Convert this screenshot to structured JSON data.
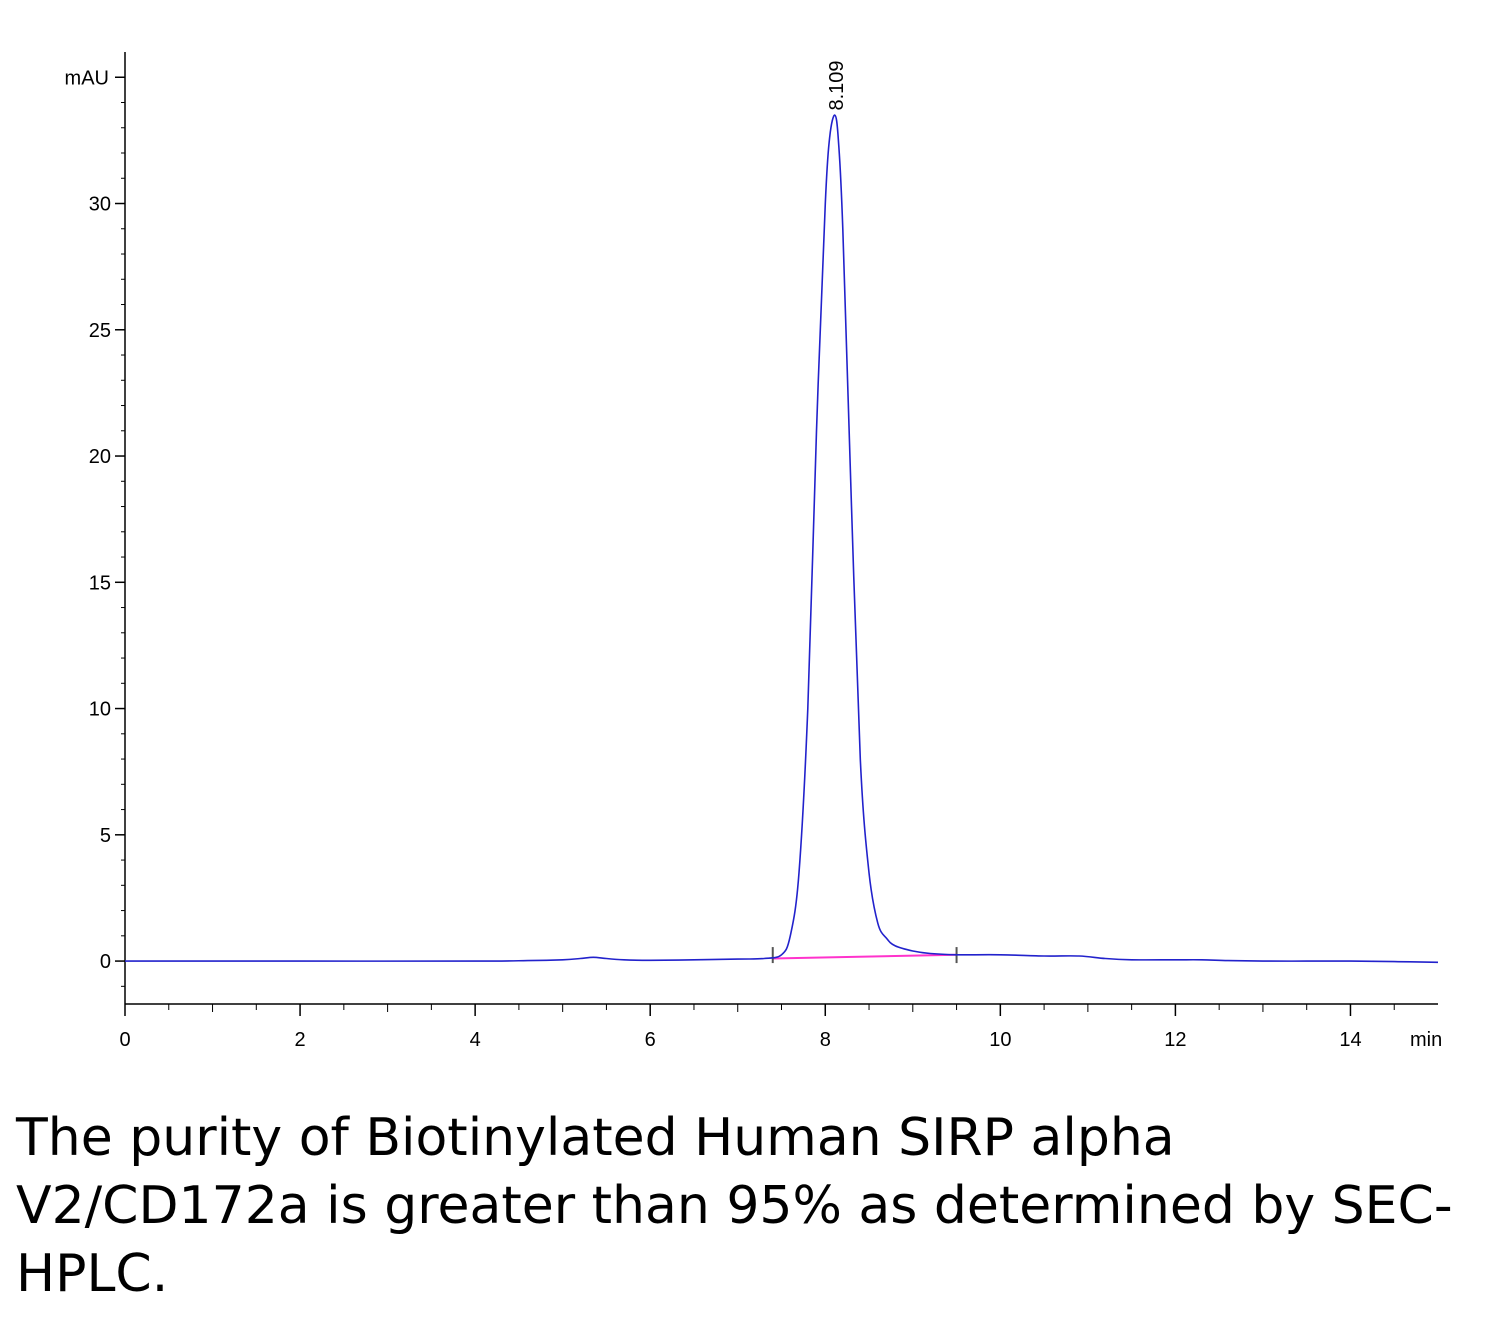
{
  "caption": "The purity of Biotinylated Human SIRP alpha V2/CD172a is greater than 95% as determined by SEC-HPLC.",
  "colors": {
    "signal": "#2222cc",
    "baseline": "#ff33cc",
    "axis": "#000000",
    "marker": "#555555"
  },
  "chart_data": {
    "type": "line",
    "ylabel": "mAU",
    "xlabel": "min",
    "xlim": [
      0,
      15
    ],
    "ylim": [
      -1.7,
      36
    ],
    "x_ticks": [
      0,
      2,
      4,
      6,
      8,
      10,
      12,
      14
    ],
    "x_tick_labels": [
      "0",
      "2",
      "4",
      "6",
      "8",
      "10",
      "12",
      "14"
    ],
    "y_ticks": [
      0,
      5,
      10,
      15,
      20,
      25,
      30
    ],
    "y_tick_labels": [
      "0",
      "5",
      "10",
      "15",
      "20",
      "25",
      "30"
    ],
    "peak_labels": [
      {
        "x": 8.109,
        "y": 34.0,
        "text": "8.109"
      }
    ],
    "integration_markers": [
      7.4,
      9.5
    ],
    "integration_baseline": {
      "x": [
        7.4,
        9.5
      ],
      "y": [
        0.1,
        0.25
      ]
    },
    "grid": false,
    "series": [
      {
        "x": [
          0,
          2,
          4,
          4.6,
          5.0,
          5.2,
          5.35,
          5.5,
          5.7,
          6.0,
          6.5,
          7.0,
          7.3,
          7.5,
          7.6,
          7.7,
          7.8,
          7.9,
          8.0,
          8.05,
          8.109,
          8.15,
          8.2,
          8.3,
          8.4,
          8.5,
          8.6,
          8.7,
          8.8,
          9.0,
          9.2,
          9.5,
          10.0,
          10.5,
          10.9,
          11.2,
          11.5,
          12.0,
          12.3,
          12.6,
          13.0,
          13.5,
          14.0,
          14.5,
          15.0
        ],
        "y": [
          0,
          0,
          0,
          0.02,
          0.05,
          0.1,
          0.15,
          0.1,
          0.05,
          0.03,
          0.05,
          0.08,
          0.1,
          0.25,
          1.0,
          3.5,
          10.0,
          21.0,
          30.0,
          32.6,
          33.5,
          32.5,
          29.0,
          18.0,
          8.0,
          3.5,
          1.5,
          0.9,
          0.6,
          0.4,
          0.3,
          0.25,
          0.25,
          0.2,
          0.2,
          0.1,
          0.05,
          0.05,
          0.05,
          0.02,
          0.0,
          0.0,
          0.0,
          -0.02,
          -0.05
        ]
      }
    ]
  }
}
